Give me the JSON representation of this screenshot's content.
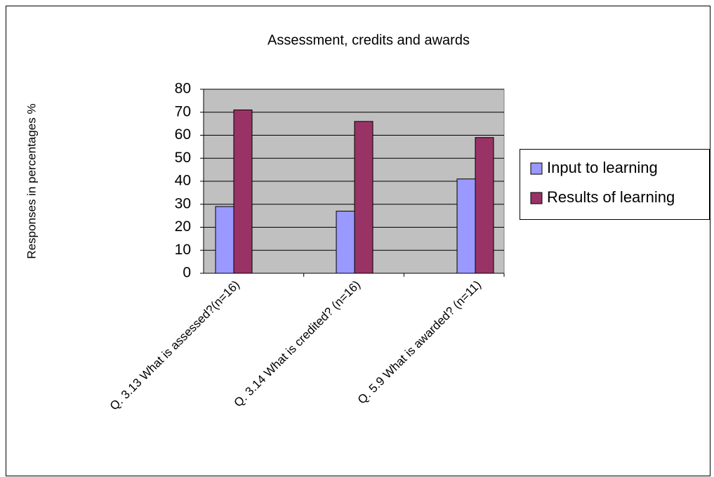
{
  "chart_data": {
    "type": "bar",
    "title": "Assessment, credits and awards",
    "y_label": "Responses in percentages %",
    "categories": [
      "Q. 3.13 What is assessed?(n=16)",
      "Q. 3.14 What is credited? (n=16)",
      "Q. 5.9 What is awarded? (n=11)"
    ],
    "series": [
      {
        "name": "Input to learning",
        "color": "#9999ff",
        "values": [
          29,
          27,
          41
        ]
      },
      {
        "name": "Results of learning",
        "color": "#993366",
        "values": [
          71,
          66,
          59
        ]
      }
    ],
    "ylim": [
      0,
      80
    ],
    "yticks": [
      0,
      10,
      20,
      30,
      40,
      50,
      60,
      70,
      80
    ],
    "grid": true,
    "legend": "right"
  }
}
